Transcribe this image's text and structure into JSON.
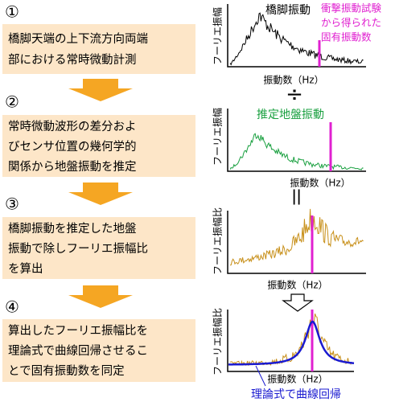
{
  "steps": [
    {
      "number": "①",
      "lines": [
        "橋脚天端の上下流方向両端",
        "部における常時微動計測"
      ]
    },
    {
      "number": "②",
      "lines": [
        "常時微動波形の差分およ",
        "びセンサ位置の幾何学的",
        "関係から地盤振動を推定"
      ]
    },
    {
      "number": "③",
      "lines": [
        "橋脚振動を推定した地盤",
        "振動で除しフーリエ振幅比",
        "を算出"
      ]
    },
    {
      "number": "④",
      "lines": [
        "算出したフーリエ振幅比を",
        "理論式で曲線回帰させるこ",
        "とで固有振動数を同定"
      ]
    }
  ],
  "panels": [
    {
      "y_label": "フーリエ振幅",
      "x_label": "振動数（Hz）",
      "curve_label": "橋脚振動",
      "note": [
        "衝撃振動試験",
        "から得られた",
        "固有振動数"
      ]
    },
    {
      "y_label": "フーリエ振幅",
      "x_label": "振動数（Hz）",
      "curve_label": "推定地盤振動"
    },
    {
      "y_label": "フーリエ振幅比",
      "x_label": "振動数（Hz）"
    },
    {
      "y_label": "フーリエ振幅比",
      "x_label": "振動数（Hz）",
      "fit_label": "理論式で曲線回帰"
    }
  ],
  "operators": [
    "÷",
    "＝"
  ]
}
